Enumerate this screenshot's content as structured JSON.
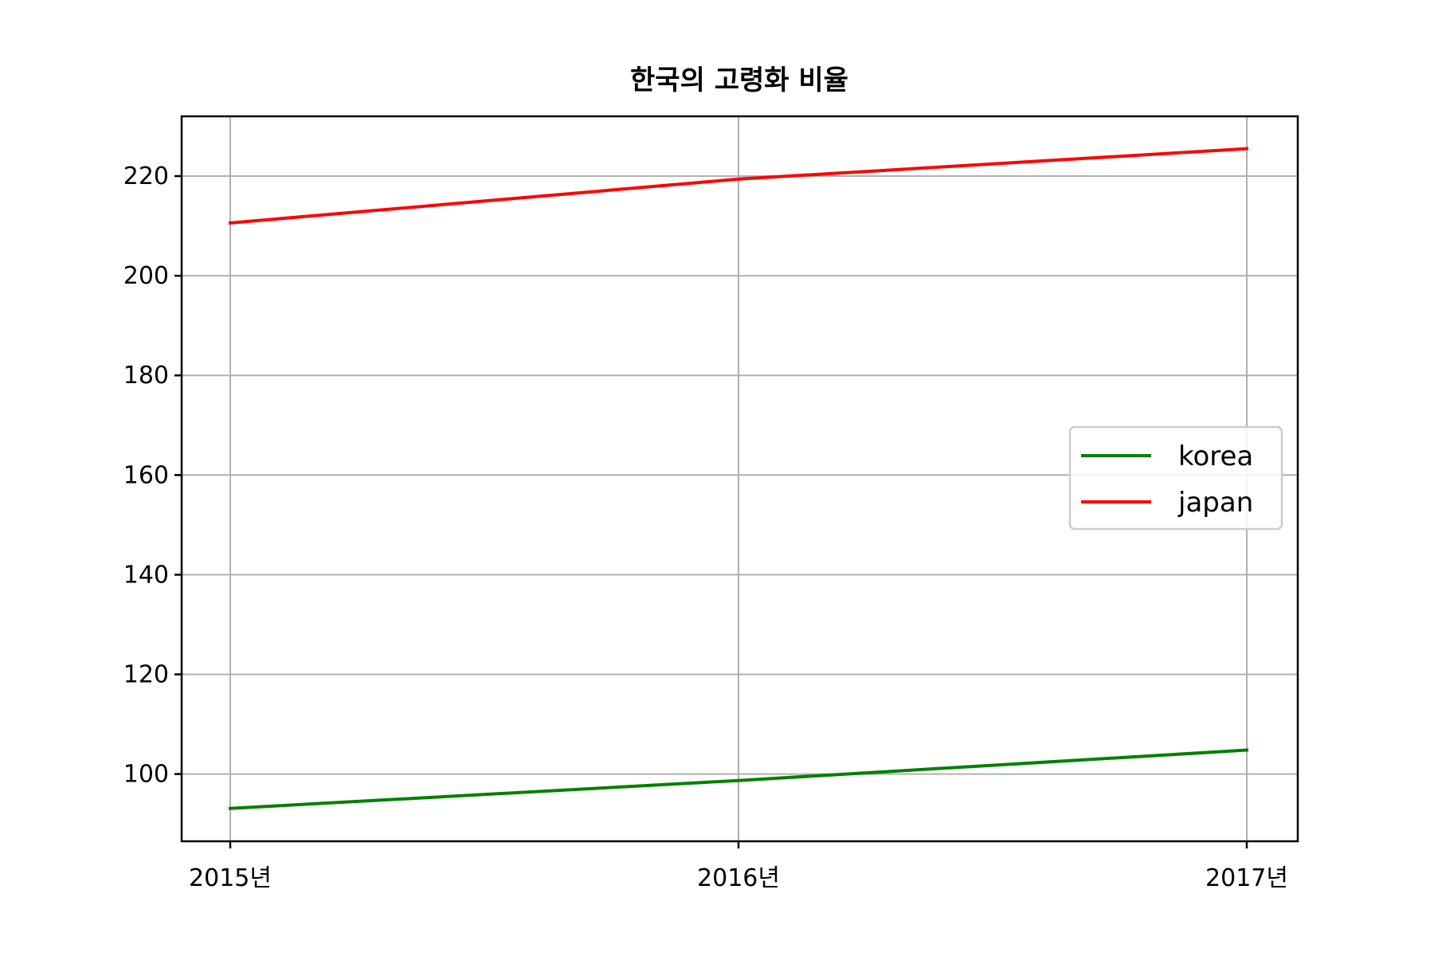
{
  "chart_data": {
    "type": "line",
    "title": "한국의 고령화 비율",
    "xlabel": "",
    "ylabel": "",
    "categories": [
      "2015년",
      "2016년",
      "2017년"
    ],
    "yticks": [
      100,
      120,
      140,
      160,
      180,
      200,
      220
    ],
    "ylim": [
      86.5,
      232
    ],
    "grid": true,
    "legend_position": "center-right",
    "series": [
      {
        "name": "korea",
        "color": "#008000",
        "values": [
          93.1,
          98.7,
          104.8
        ]
      },
      {
        "name": "japan",
        "color": "#ff0000",
        "values": [
          210.6,
          219.4,
          225.5
        ]
      }
    ]
  }
}
